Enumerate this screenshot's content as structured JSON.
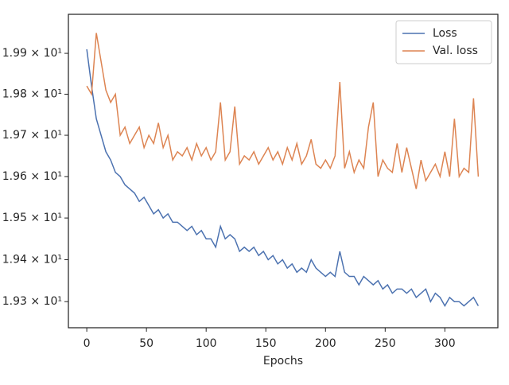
{
  "chart_data": {
    "type": "line",
    "x_label": "Epochs",
    "x": [
      0,
      4,
      8,
      12,
      16,
      20,
      24,
      28,
      32,
      36,
      40,
      44,
      48,
      52,
      56,
      60,
      64,
      68,
      72,
      76,
      80,
      84,
      88,
      92,
      96,
      100,
      104,
      108,
      112,
      116,
      120,
      124,
      128,
      132,
      136,
      140,
      144,
      148,
      152,
      156,
      160,
      164,
      168,
      172,
      176,
      180,
      184,
      188,
      192,
      196,
      200,
      204,
      208,
      212,
      216,
      220,
      224,
      228,
      232,
      236,
      240,
      244,
      248,
      252,
      256,
      260,
      264,
      268,
      272,
      276,
      280,
      284,
      288,
      292,
      296,
      300,
      304,
      308,
      312,
      316,
      320,
      324,
      328
    ],
    "series": [
      {
        "name": "Loss",
        "color": "#4c72b0",
        "values": [
          19.91,
          19.82,
          19.74,
          19.7,
          19.66,
          19.64,
          19.61,
          19.6,
          19.58,
          19.57,
          19.56,
          19.54,
          19.55,
          19.53,
          19.51,
          19.52,
          19.5,
          19.51,
          19.49,
          19.49,
          19.48,
          19.47,
          19.48,
          19.46,
          19.47,
          19.45,
          19.45,
          19.43,
          19.48,
          19.45,
          19.46,
          19.45,
          19.42,
          19.43,
          19.42,
          19.43,
          19.41,
          19.42,
          19.4,
          19.41,
          19.39,
          19.4,
          19.38,
          19.39,
          19.37,
          19.38,
          19.37,
          19.4,
          19.38,
          19.37,
          19.36,
          19.37,
          19.36,
          19.42,
          19.37,
          19.36,
          19.36,
          19.34,
          19.36,
          19.35,
          19.34,
          19.35,
          19.33,
          19.34,
          19.32,
          19.33,
          19.33,
          19.32,
          19.33,
          19.31,
          19.32,
          19.33,
          19.3,
          19.32,
          19.31,
          19.29,
          19.31,
          19.3,
          19.3,
          19.29,
          19.3,
          19.31,
          19.29
        ]
      },
      {
        "name": "Val. loss",
        "color": "#dd8452",
        "values": [
          19.82,
          19.8,
          19.95,
          19.88,
          19.81,
          19.78,
          19.8,
          19.7,
          19.72,
          19.68,
          19.7,
          19.72,
          19.67,
          19.7,
          19.68,
          19.73,
          19.67,
          19.7,
          19.64,
          19.66,
          19.65,
          19.67,
          19.64,
          19.68,
          19.65,
          19.67,
          19.64,
          19.66,
          19.78,
          19.64,
          19.66,
          19.77,
          19.63,
          19.65,
          19.64,
          19.66,
          19.63,
          19.65,
          19.67,
          19.64,
          19.66,
          19.63,
          19.67,
          19.64,
          19.68,
          19.63,
          19.65,
          19.69,
          19.63,
          19.62,
          19.64,
          19.62,
          19.65,
          19.83,
          19.62,
          19.66,
          19.61,
          19.64,
          19.62,
          19.72,
          19.78,
          19.6,
          19.64,
          19.62,
          19.61,
          19.68,
          19.61,
          19.67,
          19.62,
          19.57,
          19.64,
          19.59,
          19.61,
          19.63,
          19.6,
          19.66,
          19.6,
          19.74,
          19.6,
          19.62,
          19.61,
          19.79,
          19.6
        ]
      }
    ],
    "xlim": [
      -15.4,
      344.4
    ],
    "xticks": [
      0,
      50,
      100,
      150,
      200,
      250,
      300
    ],
    "ylim": [
      19.238,
      19.996
    ],
    "yscale": "log",
    "yticks": [
      {
        "value": 19.3,
        "label": "1.93 × 10¹"
      },
      {
        "value": 19.4,
        "label": "1.94 × 10¹"
      },
      {
        "value": 19.5,
        "label": "1.95 × 10¹"
      },
      {
        "value": 19.6,
        "label": "1.96 × 10¹"
      },
      {
        "value": 19.7,
        "label": "1.97 × 10¹"
      },
      {
        "value": 19.8,
        "label": "1.98 × 10¹"
      },
      {
        "value": 19.9,
        "label": "1.99 × 10¹"
      }
    ],
    "legend": "upper right"
  }
}
